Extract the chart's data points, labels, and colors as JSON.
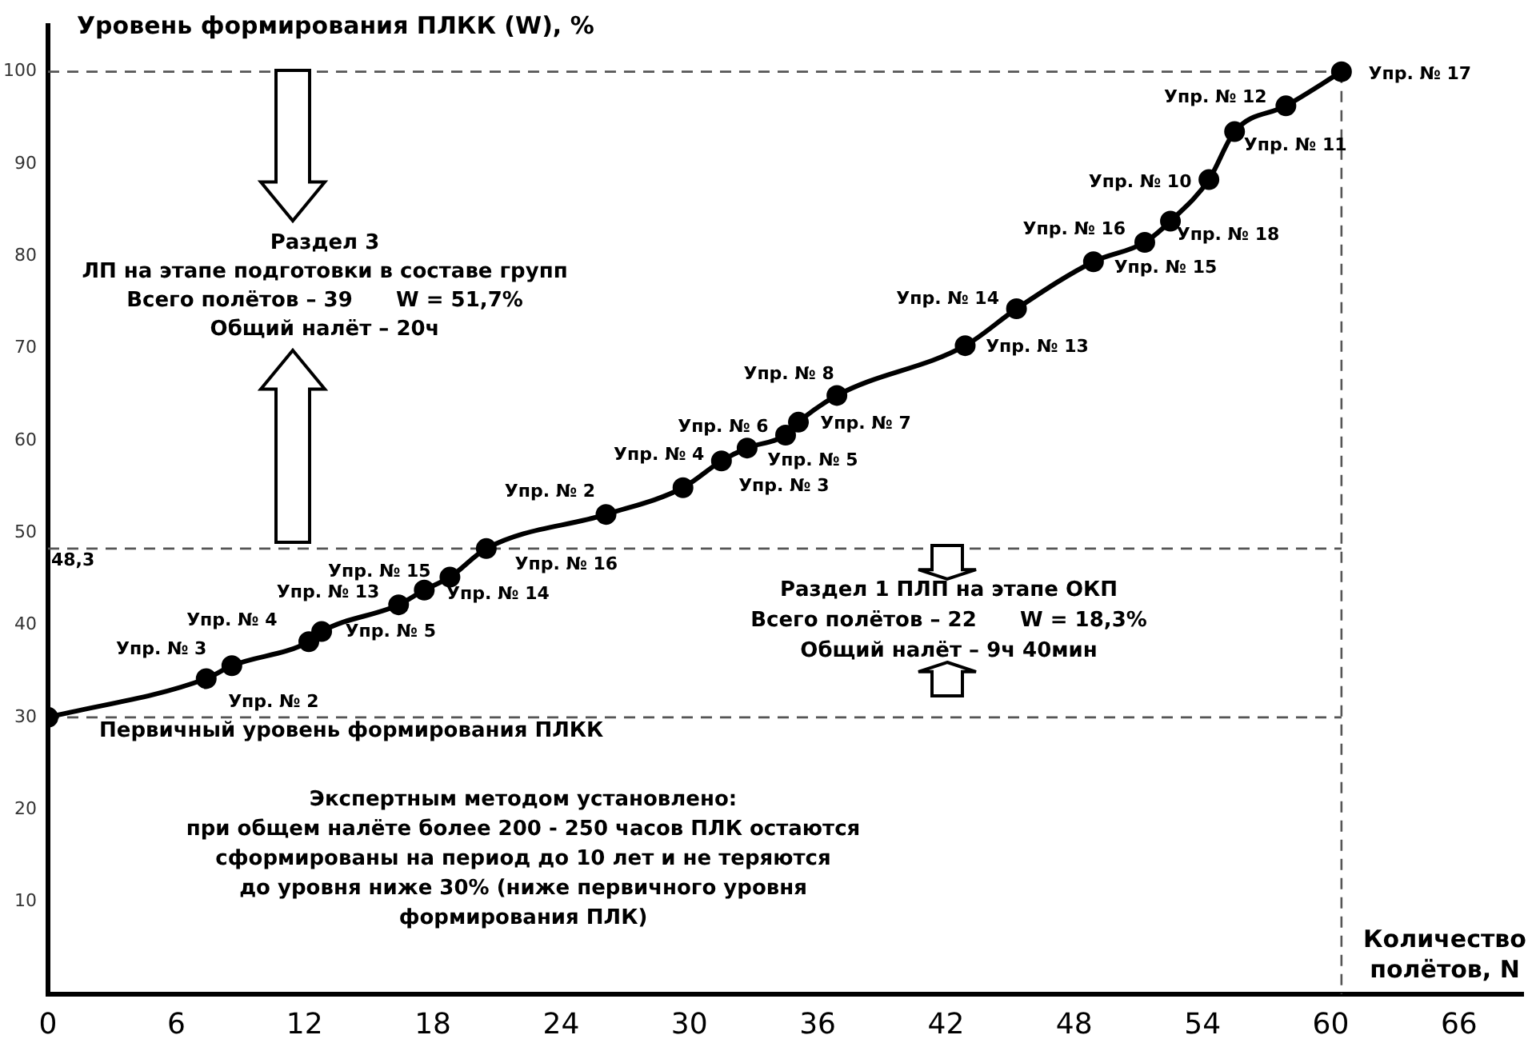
{
  "chart_data": {
    "type": "line",
    "ylabel": "Уровень формирования ПЛКК (W), %",
    "xlabel": "Количество\nполётов, N",
    "x": [
      0,
      7.4,
      8.6,
      12.2,
      12.8,
      16.4,
      17.6,
      18.8,
      20.5,
      26.1,
      29.7,
      31.5,
      32.7,
      34.5,
      35.1,
      36.9,
      42.9,
      45.3,
      48.9,
      51.3,
      52.5,
      54.3,
      55.5,
      57.9,
      60.5
    ],
    "series": [
      {
        "color": "#000000",
        "values": [
          30,
          34.2,
          35.6,
          38.2,
          39.3,
          42.2,
          43.8,
          45.2,
          48.3,
          52.0,
          54.9,
          57.8,
          59.2,
          60.6,
          62.0,
          64.9,
          70.3,
          74.3,
          79.4,
          81.5,
          83.8,
          88.3,
          93.5,
          96.3,
          100
        ]
      }
    ],
    "xlim": [
      0,
      69
    ],
    "xticks": [
      0,
      6,
      12,
      18,
      24,
      30,
      36,
      42,
      48,
      54,
      60,
      66
    ],
    "ylim": [
      0,
      105
    ],
    "yticks": [
      10,
      20,
      30,
      40,
      50,
      60,
      70,
      80,
      90,
      100
    ],
    "grid": false,
    "legend": false,
    "marker": "circle",
    "line_style": "solid",
    "ref_lines": [
      {
        "axis": "y",
        "value": 30,
        "color": "#555555",
        "line_style": "dashed"
      },
      {
        "axis": "y",
        "value": 48.3,
        "label": "48,3",
        "color": "#555555",
        "line_style": "dashed"
      },
      {
        "axis": "y",
        "value": 100,
        "color": "#555555",
        "line_style": "dashed"
      },
      {
        "axis": "x",
        "value": 60.5,
        "color": "#555555",
        "line_style": "dashed"
      }
    ],
    "annotations": [
      "Раздел 3\nЛП на этапе подготовки в составе групп\nВсего полётов – 39      W = 51,7%\nОбщий налёт – 20ч",
      "Раздел 1 ПЛП на этапе ОКП\nВсего полётов – 22      W = 18,3%\nОбщий налёт – 9ч 40мин",
      "Первичный уровень формирования ПЛКК",
      "Экспертным методом установлено:\nпри общем налёте более 200 - 250 часов ПЛК остаются\nсформированы на период до 10 лет и не теряются\nдо уровня ниже 30% (ниже первичного уровня\nформирования ПЛК)",
      {
        "text": "Упр. № 3",
        "x": 7.4,
        "y": 34.2
      },
      {
        "text": "Упр. № 4",
        "x": 8.6,
        "y": 35.6
      },
      {
        "text": "Упр. № 2",
        "x": 8.6,
        "y": 35.6
      },
      {
        "text": "Упр. № 13",
        "x": 12.8,
        "y": 39.3
      },
      {
        "text": "Упр. № 5",
        "x": 16.4,
        "y": 42.2
      },
      {
        "text": "Упр. № 15",
        "x": 17.6,
        "y": 43.8
      },
      {
        "text": "Упр. № 14",
        "x": 18.8,
        "y": 45.2
      },
      {
        "text": "Упр. № 16",
        "x": 20.5,
        "y": 48.3
      },
      {
        "text": "Упр. № 2",
        "x": 26.1,
        "y": 52.0
      },
      {
        "text": "Упр. № 4",
        "x": 29.7,
        "y": 54.9
      },
      {
        "text": "Упр. № 3",
        "x": 31.5,
        "y": 57.8
      },
      {
        "text": "Упр. № 6",
        "x": 32.7,
        "y": 59.2
      },
      {
        "text": "Упр. № 5",
        "x": 34.5,
        "y": 60.6
      },
      {
        "text": "Упр. № 7",
        "x": 35.1,
        "y": 62.0
      },
      {
        "text": "Упр. № 8",
        "x": 36.9,
        "y": 64.9
      },
      {
        "text": "Упр. № 13",
        "x": 42.9,
        "y": 70.3
      },
      {
        "text": "Упр. № 14",
        "x": 45.3,
        "y": 74.3
      },
      {
        "text": "Упр. № 16",
        "x": 48.9,
        "y": 79.4
      },
      {
        "text": "Упр. № 15",
        "x": 51.3,
        "y": 81.5
      },
      {
        "text": "Упр. № 18",
        "x": 52.5,
        "y": 83.8
      },
      {
        "text": "Упр. № 10",
        "x": 54.3,
        "y": 88.3
      },
      {
        "text": "Упр. № 11",
        "x": 55.5,
        "y": 93.5
      },
      {
        "text": "Упр. № 12",
        "x": 57.9,
        "y": 96.3
      },
      {
        "text": "Упр. № 17",
        "x": 60.5,
        "y": 100
      }
    ]
  }
}
